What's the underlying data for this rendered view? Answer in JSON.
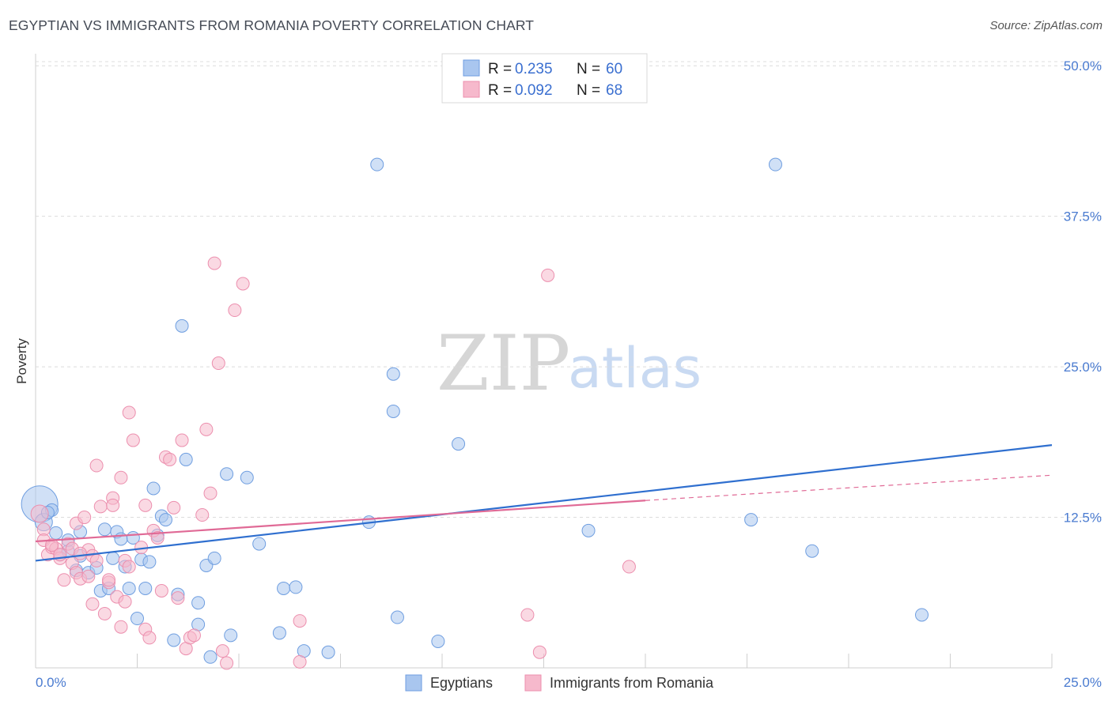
{
  "title": "EGYPTIAN VS IMMIGRANTS FROM ROMANIA POVERTY CORRELATION CHART",
  "source": "Source: ZipAtlas.com",
  "watermark": {
    "zip": "ZIP",
    "atlas": "atlas"
  },
  "colors": {
    "blue_fill": "#a9c6ef",
    "blue_stroke": "#6f9ee0",
    "blue_line": "#2f6fcf",
    "pink_fill": "#f6b9cc",
    "pink_stroke": "#ec8fae",
    "pink_line": "#e06a96",
    "grid": "#dcdcdc",
    "axis_text": "#4a7bd0"
  },
  "legend": {
    "series": [
      {
        "r_label": "R =",
        "r_value": "0.235",
        "n_label": "N =",
        "n_value": "60"
      },
      {
        "r_label": "R =",
        "r_value": "0.092",
        "n_label": "N =",
        "n_value": "68"
      }
    ]
  },
  "bottom_legend": [
    "Egyptians",
    "Immigrants from Romania"
  ],
  "chart_data": {
    "type": "scatter",
    "title": "EGYPTIAN VS IMMIGRANTS FROM ROMANIA POVERTY CORRELATION CHART",
    "xlabel": "",
    "ylabel": "Poverty",
    "xlim": [
      0,
      25
    ],
    "ylim": [
      0,
      51
    ],
    "x_tick_labels": [
      "0.0%",
      "25.0%"
    ],
    "y_ticks": [
      12.5,
      25.0,
      37.5,
      50.0
    ],
    "y_tick_labels": [
      "12.5%",
      "25.0%",
      "37.5%",
      "50.0%"
    ],
    "series": [
      {
        "name": "Egyptians",
        "r": 0.235,
        "n": 60,
        "trend": {
          "x": [
            0,
            25
          ],
          "y": [
            8.9,
            18.5
          ],
          "style": "solid"
        },
        "points": [
          [
            0.1,
            13.6,
            1.0
          ],
          [
            0.2,
            12.1,
            0.6
          ],
          [
            0.4,
            13.1,
            0.5
          ],
          [
            0.5,
            11.2,
            0.5
          ],
          [
            0.6,
            9.4,
            0.5
          ],
          [
            0.8,
            9.7,
            0.5
          ],
          [
            0.8,
            10.6,
            0.5
          ],
          [
            1.0,
            8.1,
            0.5
          ],
          [
            1.1,
            11.3,
            0.5
          ],
          [
            1.1,
            9.3,
            0.5
          ],
          [
            1.3,
            7.9,
            0.5
          ],
          [
            1.5,
            8.3,
            0.5
          ],
          [
            1.6,
            6.4,
            0.5
          ],
          [
            1.7,
            11.5,
            0.5
          ],
          [
            1.8,
            6.6,
            0.5
          ],
          [
            1.9,
            9.1,
            0.5
          ],
          [
            2.0,
            11.3,
            0.5
          ],
          [
            2.1,
            10.7,
            0.5
          ],
          [
            2.2,
            8.4,
            0.5
          ],
          [
            2.3,
            6.6,
            0.5
          ],
          [
            2.4,
            10.8,
            0.5
          ],
          [
            2.5,
            4.1,
            0.5
          ],
          [
            2.6,
            9.0,
            0.5
          ],
          [
            2.7,
            6.6,
            0.5
          ],
          [
            2.8,
            8.8,
            0.5
          ],
          [
            2.9,
            14.9,
            0.5
          ],
          [
            3.0,
            11.0,
            0.5
          ],
          [
            3.1,
            12.6,
            0.5
          ],
          [
            3.2,
            12.3,
            0.5
          ],
          [
            3.4,
            2.3,
            0.5
          ],
          [
            3.5,
            6.1,
            0.5
          ],
          [
            3.6,
            28.4,
            0.5
          ],
          [
            3.7,
            17.3,
            0.5
          ],
          [
            4.0,
            5.4,
            0.5
          ],
          [
            4.0,
            3.6,
            0.5
          ],
          [
            4.2,
            8.5,
            0.5
          ],
          [
            4.3,
            0.9,
            0.5
          ],
          [
            4.4,
            9.1,
            0.5
          ],
          [
            4.7,
            16.1,
            0.5
          ],
          [
            4.8,
            2.7,
            0.5
          ],
          [
            5.2,
            15.8,
            0.5
          ],
          [
            5.5,
            10.3,
            0.5
          ],
          [
            6.0,
            2.9,
            0.5
          ],
          [
            6.1,
            6.6,
            0.5
          ],
          [
            6.4,
            6.7,
            0.5
          ],
          [
            6.6,
            1.4,
            0.5
          ],
          [
            7.2,
            1.3,
            0.5
          ],
          [
            8.2,
            12.1,
            0.5
          ],
          [
            8.4,
            41.8,
            0.5
          ],
          [
            8.8,
            24.4,
            0.5
          ],
          [
            8.8,
            21.3,
            0.5
          ],
          [
            8.9,
            4.2,
            0.5
          ],
          [
            9.9,
            2.2,
            0.5
          ],
          [
            10.4,
            18.6,
            0.5
          ],
          [
            13.6,
            11.4,
            0.5
          ],
          [
            17.6,
            12.3,
            0.5
          ],
          [
            18.2,
            41.8,
            0.5
          ],
          [
            19.1,
            9.7,
            0.5
          ],
          [
            21.8,
            4.4,
            0.5
          ],
          [
            0.3,
            12.9,
            0.5
          ]
        ]
      },
      {
        "name": "Immigrants from Romania",
        "r": 0.092,
        "n": 68,
        "trend": {
          "x": [
            0,
            15
          ],
          "y": [
            10.5,
            13.9
          ],
          "style": "solid",
          "extended_to": [
            25,
            16.0
          ],
          "extended_style": "dashed"
        },
        "points": [
          [
            0.1,
            12.8,
            0.6
          ],
          [
            0.2,
            11.5,
            0.5
          ],
          [
            0.2,
            10.6,
            0.5
          ],
          [
            0.3,
            9.4,
            0.5
          ],
          [
            0.4,
            10.0,
            0.5
          ],
          [
            0.5,
            9.9,
            0.5
          ],
          [
            0.6,
            9.1,
            0.5
          ],
          [
            0.6,
            9.4,
            0.5
          ],
          [
            0.7,
            7.3,
            0.5
          ],
          [
            0.8,
            10.3,
            0.5
          ],
          [
            0.9,
            8.7,
            0.5
          ],
          [
            1.0,
            12.0,
            0.5
          ],
          [
            1.0,
            7.9,
            0.5
          ],
          [
            1.1,
            7.4,
            0.5
          ],
          [
            1.2,
            12.5,
            0.5
          ],
          [
            1.3,
            9.8,
            0.5
          ],
          [
            1.3,
            7.6,
            0.5
          ],
          [
            1.4,
            9.3,
            0.5
          ],
          [
            1.4,
            5.3,
            0.5
          ],
          [
            1.5,
            8.9,
            0.5
          ],
          [
            1.5,
            16.8,
            0.5
          ],
          [
            1.6,
            13.4,
            0.5
          ],
          [
            1.7,
            4.5,
            0.5
          ],
          [
            1.8,
            7.1,
            0.5
          ],
          [
            1.8,
            7.3,
            0.5
          ],
          [
            1.9,
            14.1,
            0.5
          ],
          [
            1.9,
            13.5,
            0.5
          ],
          [
            2.0,
            5.9,
            0.5
          ],
          [
            2.1,
            15.8,
            0.5
          ],
          [
            2.1,
            3.4,
            0.5
          ],
          [
            2.2,
            8.9,
            0.5
          ],
          [
            2.2,
            5.5,
            0.5
          ],
          [
            2.3,
            8.4,
            0.5
          ],
          [
            2.3,
            21.2,
            0.5
          ],
          [
            2.4,
            18.9,
            0.5
          ],
          [
            2.6,
            10.0,
            0.5
          ],
          [
            2.7,
            3.2,
            0.5
          ],
          [
            2.7,
            13.5,
            0.5
          ],
          [
            2.8,
            2.5,
            0.5
          ],
          [
            2.9,
            11.4,
            0.5
          ],
          [
            3.0,
            10.8,
            0.5
          ],
          [
            3.1,
            6.4,
            0.5
          ],
          [
            3.2,
            17.5,
            0.5
          ],
          [
            3.3,
            17.3,
            0.5
          ],
          [
            3.4,
            13.3,
            0.5
          ],
          [
            3.5,
            5.8,
            0.5
          ],
          [
            3.6,
            18.9,
            0.5
          ],
          [
            3.7,
            1.6,
            0.5
          ],
          [
            3.8,
            2.5,
            0.5
          ],
          [
            3.9,
            2.7,
            0.5
          ],
          [
            4.1,
            12.7,
            0.5
          ],
          [
            4.2,
            19.8,
            0.5
          ],
          [
            4.3,
            14.5,
            0.5
          ],
          [
            4.4,
            33.6,
            0.5
          ],
          [
            4.5,
            25.3,
            0.5
          ],
          [
            4.6,
            1.4,
            0.5
          ],
          [
            4.7,
            0.4,
            0.5
          ],
          [
            4.9,
            29.7,
            0.5
          ],
          [
            5.1,
            31.9,
            0.5
          ],
          [
            6.5,
            0.5,
            0.5
          ],
          [
            6.5,
            3.9,
            0.5
          ],
          [
            12.1,
            4.4,
            0.5
          ],
          [
            12.4,
            1.3,
            0.5
          ],
          [
            12.6,
            32.6,
            0.5
          ],
          [
            14.6,
            8.4,
            0.5
          ],
          [
            0.4,
            10.2,
            0.5
          ],
          [
            0.9,
            9.9,
            0.5
          ],
          [
            1.1,
            9.5,
            0.5
          ]
        ]
      }
    ]
  }
}
